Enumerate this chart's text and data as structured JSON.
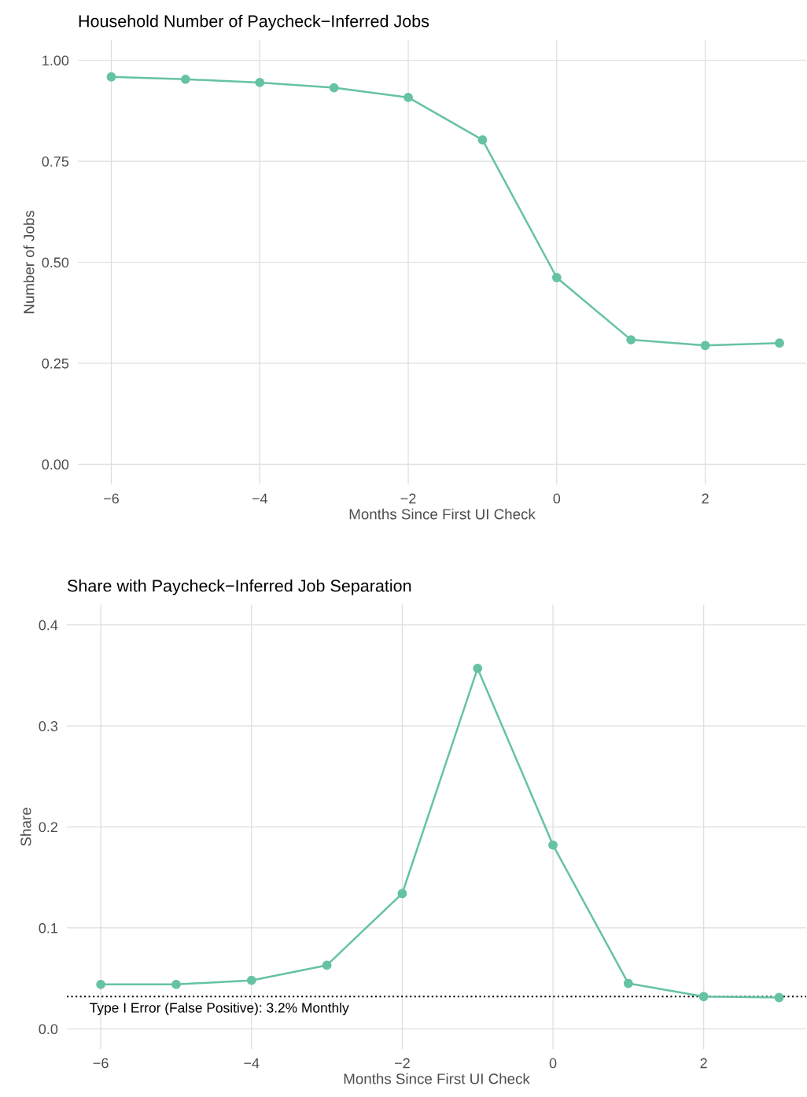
{
  "chart_data": [
    {
      "type": "line",
      "title": "Household Number of Paycheck−Inferred Jobs",
      "xlabel": "Months Since First UI Check",
      "ylabel": "Number of Jobs",
      "x": [
        -6,
        -5,
        -4,
        -3,
        -2,
        -1,
        0,
        1,
        2,
        3
      ],
      "series": [
        {
          "color": "#66c2a5",
          "values": [
            0.959,
            0.953,
            0.945,
            0.932,
            0.908,
            0.803,
            0.462,
            0.308,
            0.294,
            0.3
          ]
        }
      ],
      "xlim": [
        -6.45,
        3.36
      ],
      "xticks": [
        {
          "value": -6,
          "label": "−6"
        },
        {
          "value": -4,
          "label": "−4"
        },
        {
          "value": -2,
          "label": "−2"
        },
        0,
        2
      ],
      "ylim": [
        -0.05,
        1.05
      ],
      "yticks": [
        {
          "value": 0,
          "label": "0.00"
        },
        {
          "value": 0.25,
          "label": "0.25"
        },
        {
          "value": 0.5,
          "label": "0.50"
        },
        {
          "value": 0.75,
          "label": "0.75"
        },
        {
          "value": 1,
          "label": "1.00"
        }
      ],
      "grid": true,
      "marker": "circle",
      "line_style": "solid"
    },
    {
      "type": "line",
      "title": "Share with Paycheck−Inferred Job Separation",
      "xlabel": "Months Since First UI Check",
      "ylabel": "Share",
      "x": [
        -6,
        -5,
        -4,
        -3,
        -2,
        -1,
        0,
        1,
        2,
        3
      ],
      "series": [
        {
          "color": "#66c2a5",
          "values": [
            0.044,
            0.044,
            0.048,
            0.063,
            0.134,
            0.357,
            0.182,
            0.045,
            0.032,
            0.031
          ]
        }
      ],
      "xlim": [
        -6.45,
        3.36
      ],
      "xticks": [
        {
          "value": -6,
          "label": "−6"
        },
        {
          "value": -4,
          "label": "−4"
        },
        {
          "value": -2,
          "label": "−2"
        },
        0,
        2
      ],
      "ylim": [
        -0.02,
        0.42
      ],
      "yticks": [
        {
          "value": 0,
          "label": "0.0"
        },
        0.1,
        0.2,
        0.3,
        0.4
      ],
      "ref_lines": [
        {
          "axis": "y",
          "value": 0.032,
          "label": "Type I Error (False Positive): 3.2% Monthly",
          "color": "#000000",
          "line_style": "dotted"
        }
      ],
      "grid": true,
      "marker": "circle",
      "line_style": "solid"
    }
  ]
}
